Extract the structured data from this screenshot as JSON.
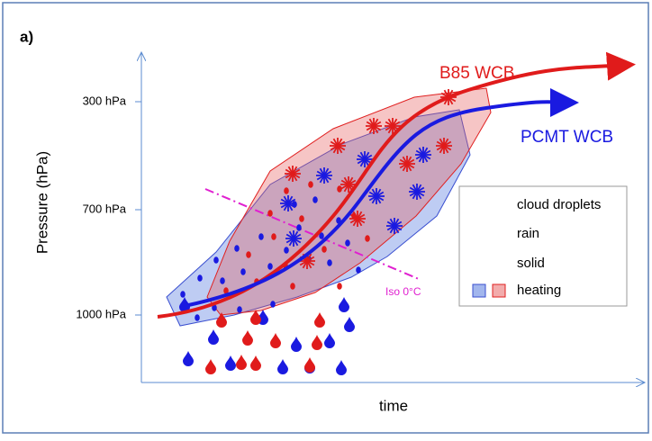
{
  "panel_label": "a)",
  "axes": {
    "y_label": "Pressure (hPa)",
    "x_label": "time",
    "y_ticks": [
      "300 hPa",
      "700 hPa",
      "1000 hPa"
    ]
  },
  "curves": {
    "b85": "B85 WCB",
    "pcmt": "PCMT WCB",
    "iso": "Iso 0°C"
  },
  "legend": [
    "cloud droplets",
    "rain",
    "solid",
    "heating"
  ]
}
